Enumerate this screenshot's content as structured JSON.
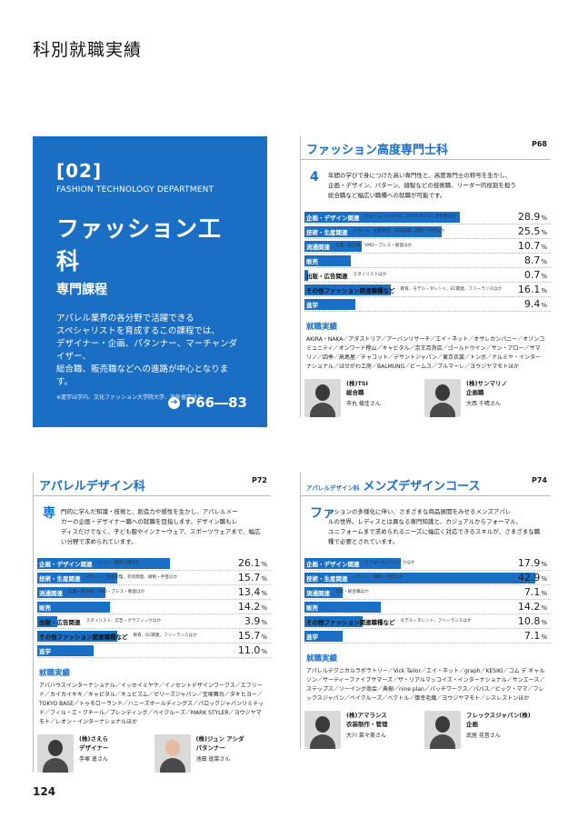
{
  "page_title": "科別就職実績",
  "page_number": "124",
  "hero": {
    "num": "[02]",
    "eng": "FASHION TECHNOLOGY DEPARTMENT",
    "title": "ファッション工科",
    "sub": "専門課程",
    "desc1": "アパレル業界の各分野で活躍できる",
    "desc2": "スペシャリストを育成するこの課程では、",
    "desc3": "デザイナー・企画、パタンナー、マーチャンダイザー、",
    "desc4": "総合職、販売職などへの進路が中心となります。",
    "note": "※進学は学内、文化ファッション大学院大学、海外留学ほか",
    "pages": "P66―83",
    "color": "#1a6fc4"
  },
  "panels": [
    {
      "pre": "",
      "title": "ファッション高度専門士科",
      "page": "P68",
      "drop": "4",
      "intro1": "年間の学びで身につけた高い専門性と、高度専門士の称号を生かし、",
      "intro2": "企画・デザイン、パターン、縫製などの技術職、リーダー的役割を担う",
      "intro3": "総合職など幅広い職種への就職が可能です。",
      "stats": [
        {
          "label": "企画・デザイン関連",
          "detail": "ヴォーム・リメイク、テキスタイル、注文服ほか",
          "value": "28.9",
          "pct": 28.9
        },
        {
          "label": "技術・生産関連",
          "detail": "パターン、生産管理、衣装関連、縫製・手芸ほか",
          "value": "25.5",
          "pct": 25.5
        },
        {
          "label": "流通関連",
          "detail": "営業・総合職、VMD・プレス・販促ほか",
          "value": "10.7",
          "pct": 10.7
        },
        {
          "label": "販売",
          "detail": "",
          "value": "8.7",
          "pct": 8.7
        },
        {
          "label": "出版・広告関連",
          "detail": "スタイリストほか",
          "value": "0.7",
          "pct": 0.7
        },
        {
          "label": "その他ファッション関連職種など",
          "detail": "教育、モデル・タレント、EC関連、フリーランスほか",
          "value": "16.1",
          "pct": 16.1
        },
        {
          "label": "進学",
          "detail": "",
          "value": "9.4",
          "pct": 9.4
        }
      ],
      "emp_title": "就職実績",
      "emp_list": "AKIRA・NAKA／アダストリア／アーバンリサーチ／エイ・ネット／オサレカンパニー／オゾンコミュニティ／オンワード樫山／キャビタル／京王百貨店／ゴールドウイン／サン・アロー／サマリノ／四季／高島屋／チャコット／デサントジャパン／東京衣裳／トンボ／ナルミヤ・インターナショナル／はせがわ工房／BALMUNG／ビームス／ブルマーレ／ヨウジヤマモトほか",
      "people": [
        {
          "company": "(株)TSI",
          "role": "総合職",
          "name": "市丸 槇佳さん"
        },
        {
          "company": "(株)サンマリノ",
          "role": "企画職",
          "name": "大西 千晴さん"
        }
      ]
    },
    {
      "pre": "",
      "title": "アパレルデザイン科",
      "page": "P72",
      "drop": "専",
      "intro1": "門的に学んだ知識・技術と、創造力や感性を生かし、アパレルメー",
      "intro2": "カーの企画・デザイナー職への就職を目指します。デザイン職もレ",
      "intro3": "ディスだけでなく、子ども服やインナーウェア、スポーツウェアまで、幅広い分野で求められています。",
      "stats": [
        {
          "label": "企画・デザイン関連",
          "detail": "ニット、服飾小物ほか",
          "value": "26.1",
          "pct": 26.1
        },
        {
          "label": "技術・生産関連",
          "detail": "パターン、生産管理、衣装関連、縫製・手芸ほか",
          "value": "15.7",
          "pct": 15.7
        },
        {
          "label": "流通関連",
          "detail": "営業・総合職、VMD・プレス・販促ほか",
          "value": "13.4",
          "pct": 13.4
        },
        {
          "label": "販売",
          "detail": "",
          "value": "14.2",
          "pct": 14.2
        },
        {
          "label": "出版・広告関連",
          "detail": "スタイリスト、広告・グラフィックほか",
          "value": "3.9",
          "pct": 3.9
        },
        {
          "label": "その他ファッション関連職種など",
          "detail": "教育、EC関連、フリーランスほか",
          "value": "15.7",
          "pct": 15.7
        },
        {
          "label": "進学",
          "detail": "",
          "value": "11.0",
          "pct": 11.0
        }
      ],
      "emp_title": "就職実績",
      "emp_list": "アパハウスインターナショナル／イッセイミヤケ／イノセントデザインワークス／エフリード／カイカイキキ／キャピタル／キュビズム／ゼリーズジャパン／宝塚舞台／タキヒヨー／TOKYO BASE／トゥモローランド／ハニーズホールディングス／パロックジャパンリミテッド／フィル・エ・クチール／プレンディング／ベイクルーズ／MARK STYLER／ヨウジヤマモト／レオン・インターナショナルほか",
      "people": [
        {
          "company": "(株)さえら",
          "role": "デザイナー",
          "name": "手塚 遥さん"
        },
        {
          "company": "(株)ジュン アシダ",
          "role": "パタンナー",
          "name": "池田 遥菜さん"
        }
      ]
    },
    {
      "pre": "アパレルデザイン科",
      "title": "メンズデザインコース",
      "page": "P74",
      "drop": "ファ",
      "intro1": "ッションの多様化に伴い、さまざまな商品展開をみせるメンズアパレ",
      "intro2": "ルの世界。レディスとは異なる専門知識と、カジュアルからフォーマル、",
      "intro3": "ユニフォームまで求められるニーズに幅広く対応できるスキルが、さまざまな職種で必要とされています。",
      "stats": [
        {
          "label": "企画・デザイン関連",
          "detail": "リフォーム・リメイクほか",
          "value": "17.9",
          "pct": 17.9
        },
        {
          "label": "技術・生産関連",
          "detail": "パターン、縫製・手芸ほか",
          "value": "42.9",
          "pct": 42.9
        },
        {
          "label": "流通関連",
          "detail": "営業・総合職ほか",
          "value": "7.1",
          "pct": 7.1
        },
        {
          "label": "販売",
          "detail": "",
          "value": "14.2",
          "pct": 14.2
        },
        {
          "label": "その他ファッション関連職種など",
          "detail": "モデル・タレント、フリーランスほか",
          "value": "10.8",
          "pct": 10.8
        },
        {
          "label": "進学",
          "detail": "",
          "value": "7.1",
          "pct": 7.1
        }
      ],
      "emp_title": "就職実績",
      "emp_list": "アパレルテクニカルラボラトリー／Vick Tailor／エイ・ネット／graph／KESIKI／コム デ ギャルソン／サーティーファイブサマーズ／ザ・リアルマッコイズ・インターナショナル／サンエース／ステップス／ソーイング商会／典樹／nine plan／パッチワークス／パパス／ビック・ママ／フレックスジャパン／ベイクルーズ／ベクトル／御幸毛織／ヨウジヤマモト／レスレストンほか",
      "people": [
        {
          "company": "(株)アマランス",
          "role": "衣装制作・管理",
          "name": "大川 菜々美さん"
        },
        {
          "company": "フレックスジャパン(株)",
          "role": "企画",
          "name": "武居 花音さん"
        }
      ]
    }
  ]
}
